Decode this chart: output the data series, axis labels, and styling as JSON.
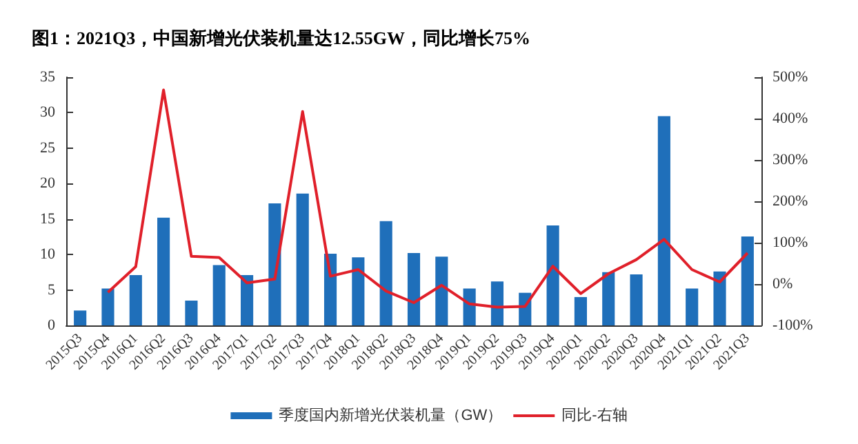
{
  "chart_data": {
    "type": "bar",
    "title": "图1：2021Q3，中国新增光伏装机量达12.55GW，同比增长75%",
    "categories": [
      "2015Q3",
      "2015Q4",
      "2016Q1",
      "2016Q2",
      "2016Q3",
      "2016Q4",
      "2017Q1",
      "2017Q2",
      "2017Q3",
      "2017Q4",
      "2018Q1",
      "2018Q2",
      "2018Q3",
      "2018Q4",
      "2019Q1",
      "2019Q2",
      "2019Q3",
      "2019Q4",
      "2020Q1",
      "2020Q2",
      "2020Q3",
      "2020Q4",
      "2021Q1",
      "2021Q2",
      "2021Q3"
    ],
    "series": [
      {
        "name": "季度国内新增光伏装机量（GW）",
        "color": "#1f6fba",
        "values": [
          2.1,
          5.2,
          7.1,
          15.2,
          3.5,
          8.5,
          7.1,
          17.2,
          18.6,
          10.1,
          9.6,
          14.7,
          10.2,
          9.7,
          5.2,
          6.2,
          4.6,
          14.1,
          4.0,
          7.5,
          7.2,
          29.5,
          5.2,
          7.6,
          12.55
        ]
      },
      {
        "name": "同比-右轴",
        "type": "line",
        "axis": "y2",
        "color": "#e0202a",
        "values": [
          null,
          -20,
          42,
          469,
          67,
          64,
          3,
          12,
          417,
          19,
          35,
          -17,
          -45,
          -3,
          -48,
          -56,
          -54,
          43,
          -23,
          25,
          59,
          108,
          35,
          5,
          75
        ]
      }
    ],
    "ylim": [
      0,
      35
    ],
    "yticks": [
      0,
      5,
      10,
      15,
      20,
      25,
      30,
      35
    ],
    "y2lim": [
      -100,
      500
    ],
    "y2ticks": [
      {
        "value": -100,
        "label": "-100%"
      },
      {
        "value": 0,
        "label": "0%"
      },
      {
        "value": 100,
        "label": "100%"
      },
      {
        "value": 200,
        "label": "200%"
      },
      {
        "value": 300,
        "label": "300%"
      },
      {
        "value": 400,
        "label": "400%"
      },
      {
        "value": 500,
        "label": "500%"
      }
    ],
    "grid": false,
    "legend": "bottom",
    "marker": "none",
    "line_style": "solid"
  }
}
